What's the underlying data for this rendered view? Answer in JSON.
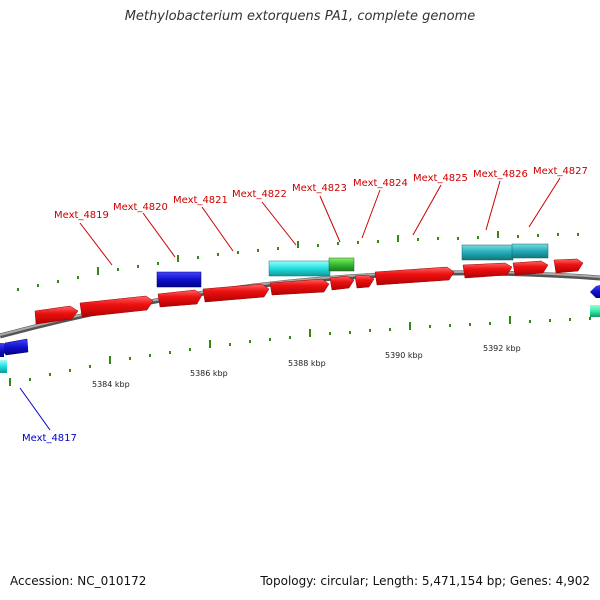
{
  "title": "Methylobacterium extorquens PA1, complete genome",
  "footer": {
    "accession": "Accession: NC_010172",
    "summary": "Topology: circular; Length: 5,471,154 bp; Genes: 4,902"
  },
  "colors": {
    "forward_cds": "#ee1111",
    "reverse_cds": "#1111cc",
    "forward_rna": "#22dddd",
    "forward_rna_alt": "#22aabb",
    "green_feature": "#33bb33",
    "backbone": "#888888",
    "tick_green": "#338811",
    "label_forward": "#cc0000",
    "label_reverse": "#0000cc"
  },
  "scale": {
    "ticks": [
      "5384 kbp",
      "5386 kbp",
      "5388 kbp",
      "5390 kbp",
      "5392 kbp"
    ]
  },
  "gene_labels_forward": [
    "Mext_4819",
    "Mext_4820",
    "Mext_4821",
    "Mext_4822",
    "Mext_4823",
    "Mext_4824",
    "Mext_4825",
    "Mext_4826",
    "Mext_4827"
  ],
  "gene_labels_reverse": [
    "Mext_4817"
  ]
}
